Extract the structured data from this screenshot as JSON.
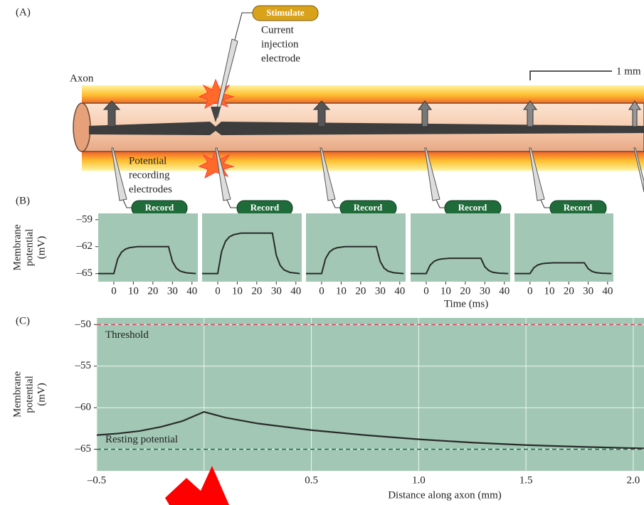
{
  "panel_a": {
    "label": "(A)",
    "stimulate": "Stimulate",
    "electrode_label": [
      "Current",
      "injection",
      "electrode"
    ],
    "axon": "Axon",
    "scale": "1 mm",
    "recording_label": [
      "Potential",
      "recording",
      "electrodes"
    ],
    "record": [
      "Record",
      "Record",
      "Record",
      "Record",
      "Record"
    ]
  },
  "panel_b_label": "(B)",
  "panel_c_label": "(C)",
  "chart_data": [
    {
      "type": "line",
      "ylabel": [
        "Membrane",
        "potential",
        "(mV)"
      ],
      "x": [
        -8,
        0,
        2,
        4,
        6,
        8,
        12,
        20,
        28,
        30,
        32,
        34,
        37,
        42
      ],
      "values": [
        -65,
        -65,
        -63.35,
        -62.6,
        -62.27,
        -62.12,
        -62,
        -62,
        -62,
        -63.65,
        -64.4,
        -64.73,
        -64.91,
        -65
      ],
      "color": "#2a2a2a",
      "xlim": [
        -8,
        43
      ],
      "ylim": [
        -65.9,
        -58.3
      ],
      "xticks": [
        0,
        10,
        20,
        30,
        40
      ],
      "yticks": [
        {
          "value": -59,
          "label": "–59"
        },
        {
          "value": -62,
          "label": "–62"
        },
        {
          "value": -65,
          "label": "–65"
        }
      ]
    },
    {
      "type": "line",
      "x": [
        -8,
        0,
        2,
        4,
        6,
        8,
        12,
        20,
        28,
        30,
        32,
        34,
        37,
        42
      ],
      "values": [
        -65,
        -65,
        -62.53,
        -61.4,
        -60.91,
        -60.68,
        -60.5,
        -60.5,
        -60.5,
        -62.98,
        -64.1,
        -64.6,
        -64.87,
        -65
      ],
      "color": "#2a2a2a",
      "xlim": [
        -8,
        43
      ],
      "ylim": [
        -65.9,
        -58.3
      ],
      "xticks": [
        0,
        10,
        20,
        30,
        40
      ]
    },
    {
      "type": "line",
      "x": [
        -8,
        0,
        2,
        4,
        6,
        8,
        12,
        20,
        28,
        30,
        32,
        34,
        37,
        42
      ],
      "values": [
        -65,
        -65,
        -63.35,
        -62.6,
        -62.27,
        -62.12,
        -62,
        -62,
        -62,
        -63.65,
        -64.4,
        -64.73,
        -64.91,
        -65
      ],
      "color": "#2a2a2a",
      "xlim": [
        -8,
        43
      ],
      "ylim": [
        -65.9,
        -58.3
      ],
      "xticks": [
        0,
        10,
        20,
        30,
        40
      ]
    },
    {
      "type": "line",
      "xlabel": "Time (ms)",
      "x": [
        -8,
        0,
        2,
        4,
        6,
        8,
        12,
        20,
        28,
        30,
        32,
        34,
        37,
        42
      ],
      "values": [
        -65,
        -65,
        -64.07,
        -63.64,
        -63.45,
        -63.37,
        -63.3,
        -63.3,
        -63.3,
        -64.24,
        -64.66,
        -64.85,
        -64.95,
        -65
      ],
      "color": "#2a2a2a",
      "xlim": [
        -8,
        43
      ],
      "ylim": [
        -65.9,
        -58.3
      ],
      "xticks": [
        0,
        10,
        20,
        30,
        40
      ]
    },
    {
      "type": "line",
      "x": [
        -8,
        0,
        2,
        4,
        6,
        8,
        12,
        20,
        28,
        30,
        32,
        34,
        37,
        42
      ],
      "values": [
        -65,
        -65,
        -64.34,
        -64.04,
        -63.91,
        -63.85,
        -63.8,
        -63.8,
        -63.8,
        -64.46,
        -64.76,
        -64.89,
        -64.96,
        -65
      ],
      "color": "#2a2a2a",
      "xlim": [
        -8,
        43
      ],
      "ylim": [
        -65.9,
        -58.3
      ],
      "xticks": [
        0,
        10,
        20,
        30,
        40
      ]
    },
    {
      "type": "line",
      "ylabel": [
        "Membrane",
        "potential",
        "(mV)"
      ],
      "xlabel": "Distance along axon (mm)",
      "x": [
        -0.5,
        -0.4,
        -0.3,
        -0.2,
        -0.1,
        0,
        0.1,
        0.25,
        0.5,
        0.75,
        1,
        1.25,
        1.5,
        1.75,
        2.05
      ],
      "values": [
        -63.3,
        -63.1,
        -62.8,
        -62.3,
        -61.6,
        -60.5,
        -61.2,
        -61.9,
        -62.7,
        -63.3,
        -63.8,
        -64.2,
        -64.5,
        -64.7,
        -64.9
      ],
      "color": "#2a2a2a",
      "xlim": [
        -0.5,
        2.05
      ],
      "ylim": [
        -67.6,
        -49.2
      ],
      "grid": true,
      "xticks": [
        {
          "value": -0.5,
          "label": "–0.5"
        },
        {
          "value": 0,
          "label": null
        },
        {
          "value": 0.5,
          "label": "0.5"
        },
        {
          "value": 1,
          "label": "1.0"
        },
        {
          "value": 1.5,
          "label": "1.5"
        },
        {
          "value": 2,
          "label": "2.0"
        }
      ],
      "yticks": [
        {
          "value": -50,
          "label": "–50"
        },
        {
          "value": -55,
          "label": "–55"
        },
        {
          "value": -60,
          "label": "–60"
        },
        {
          "value": -65,
          "label": "–65"
        }
      ],
      "hlines": [
        {
          "value": -50,
          "label": "Threshold",
          "color": "#d9475f"
        },
        {
          "value": -65,
          "label": "Resting potential",
          "color": "#1e6b4a"
        }
      ]
    }
  ]
}
